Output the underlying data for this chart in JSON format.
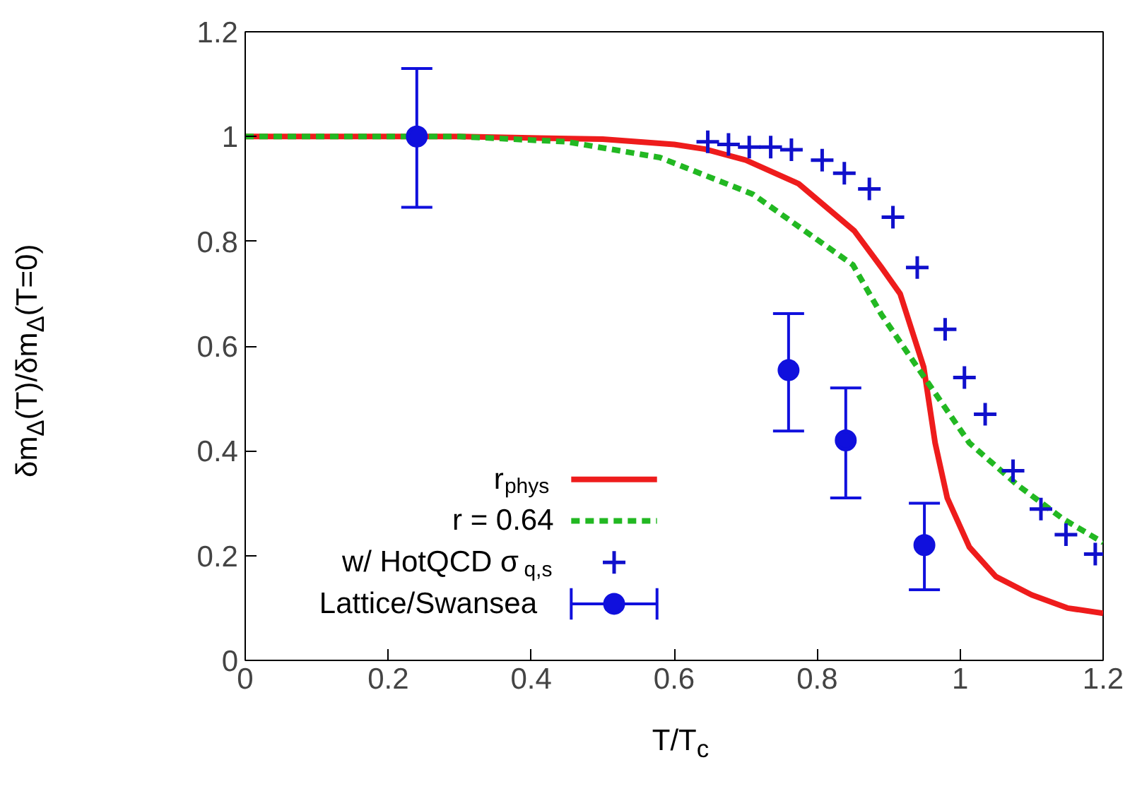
{
  "chart_data": {
    "type": "line",
    "xlabel": "T/T$_{c}$",
    "ylabel": "δm$_{Δ}$(T)/δm$_{Δ}$(T=0)",
    "xlim": [
      0,
      1.2
    ],
    "ylim": [
      0,
      1.2
    ],
    "xticks": [
      0,
      0.2,
      0.4,
      0.6,
      0.8,
      {
        "value": 1,
        "label": "1"
      },
      1.2
    ],
    "yticks": [
      0,
      0.2,
      0.4,
      0.6,
      0.8,
      {
        "value": 1,
        "label": "1"
      },
      1.2
    ],
    "grid": false,
    "legend": "bottom",
    "series": [
      {
        "name": "r$_{phys}$",
        "type": "line",
        "line_style": "solid",
        "color": "#ee1c1c",
        "x": [
          0,
          0.3,
          0.5,
          0.6,
          0.643,
          0.7,
          0.774,
          0.852,
          0.89,
          0.916,
          0.949,
          0.965,
          0.982,
          1.013,
          1.05,
          1.1,
          1.15,
          1.2
        ],
        "values": [
          1,
          1,
          0.995,
          0.985,
          0.976,
          0.955,
          0.91,
          0.82,
          0.75,
          0.7,
          0.56,
          0.415,
          0.31,
          0.216,
          0.16,
          0.125,
          0.1,
          0.09
        ]
      },
      {
        "name": "r = 0.64",
        "type": "line",
        "line_style": "dashed",
        "color": "#22b822",
        "x": [
          0,
          0.3,
          0.45,
          0.58,
          0.71,
          0.85,
          0.89,
          0.95,
          1.013,
          1.08,
          1.144,
          1.2
        ],
        "values": [
          1,
          1,
          0.99,
          0.96,
          0.89,
          0.755,
          0.66,
          0.54,
          0.415,
          0.335,
          0.27,
          0.225
        ]
      },
      {
        "name": "w/ HotQCD σ$_{q,s}$",
        "type": "scatter",
        "marker": "cross",
        "color": "#1010cc",
        "x": [
          0.647,
          0.676,
          0.705,
          0.735,
          0.764,
          0.807,
          0.838,
          0.873,
          0.906,
          0.94,
          0.979,
          1.006,
          1.035,
          1.074,
          1.113,
          1.148,
          1.189
        ],
        "values": [
          0.99,
          0.985,
          0.98,
          0.98,
          0.975,
          0.955,
          0.93,
          0.9,
          0.846,
          0.75,
          0.632,
          0.54,
          0.47,
          0.362,
          0.289,
          0.24,
          0.203
        ]
      },
      {
        "name": "Lattice/Swansea",
        "type": "scatter",
        "marker": "circle",
        "color": "#1010dd",
        "x": [
          0.24,
          0.76,
          0.84,
          0.95
        ],
        "values": [
          1.0,
          0.554,
          0.42,
          0.22
        ],
        "errors": [
          [
            0.865,
            1.13
          ],
          [
            0.438,
            0.662
          ],
          [
            0.31,
            0.52
          ],
          [
            0.135,
            0.3
          ]
        ]
      }
    ]
  }
}
